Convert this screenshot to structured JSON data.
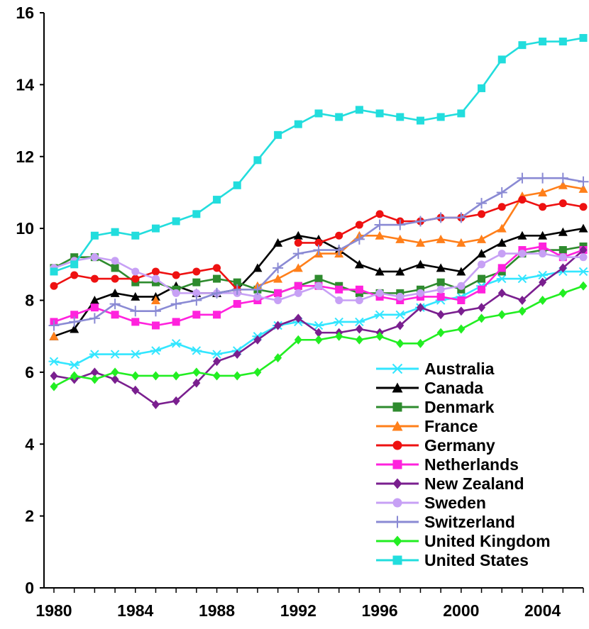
{
  "chart_data": {
    "type": "line",
    "title": "",
    "xlabel": "",
    "ylabel": "",
    "xlim": [
      1980,
      2006
    ],
    "ylim": [
      0,
      16
    ],
    "y_ticks": [
      "0",
      "2",
      "4",
      "6",
      "8",
      "10",
      "12",
      "14",
      "16"
    ],
    "x_ticks": [
      "1980",
      "1984",
      "1988",
      "1992",
      "1996",
      "2000",
      "2004"
    ],
    "x": [
      1980,
      1981,
      1982,
      1983,
      1984,
      1985,
      1986,
      1987,
      1988,
      1989,
      1990,
      1991,
      1992,
      1993,
      1994,
      1995,
      1996,
      1997,
      1998,
      1999,
      2000,
      2001,
      2002,
      2003,
      2004,
      2005,
      2006
    ],
    "grid": false,
    "legend_position": "bottom-right",
    "series": [
      {
        "name": "Australia",
        "color": "#33e6ff",
        "marker": "star",
        "values": [
          6.3,
          6.2,
          6.5,
          6.5,
          6.5,
          6.6,
          6.8,
          6.6,
          6.5,
          6.6,
          7.0,
          7.3,
          7.4,
          7.3,
          7.4,
          7.4,
          7.6,
          7.6,
          7.8,
          8.0,
          8.1,
          8.4,
          8.6,
          8.6,
          8.7,
          8.8,
          8.8
        ]
      },
      {
        "name": "Canada",
        "color": "#000000",
        "marker": "triangle",
        "values": [
          7.0,
          7.2,
          8.0,
          8.2,
          8.1,
          8.1,
          8.4,
          8.2,
          8.2,
          8.3,
          8.9,
          9.6,
          9.8,
          9.7,
          9.4,
          9.0,
          8.8,
          8.8,
          9.0,
          8.9,
          8.8,
          9.3,
          9.6,
          9.8,
          9.8,
          9.9,
          10.0
        ]
      },
      {
        "name": "Denmark",
        "color": "#2e8b2e",
        "marker": "square",
        "values": [
          8.9,
          9.2,
          9.2,
          8.9,
          8.5,
          8.5,
          8.3,
          8.5,
          8.6,
          8.5,
          8.3,
          8.2,
          8.4,
          8.6,
          8.4,
          8.2,
          8.2,
          8.2,
          8.3,
          8.5,
          8.3,
          8.6,
          8.8,
          9.3,
          9.4,
          9.4,
          9.5
        ]
      },
      {
        "name": "France",
        "color": "#ff7f1a",
        "marker": "triangle",
        "values": [
          7.0,
          null,
          null,
          null,
          null,
          8.0,
          null,
          null,
          null,
          null,
          8.4,
          8.6,
          8.9,
          9.3,
          9.3,
          9.8,
          9.8,
          9.7,
          9.6,
          9.7,
          9.6,
          9.7,
          10.0,
          10.9,
          11.0,
          11.2,
          11.1
        ]
      },
      {
        "name": "Germany",
        "color": "#ee1111",
        "marker": "circle",
        "values": [
          8.4,
          8.7,
          8.6,
          8.6,
          8.6,
          8.8,
          8.7,
          8.8,
          8.9,
          8.3,
          null,
          null,
          9.6,
          9.6,
          9.8,
          10.1,
          10.4,
          10.2,
          10.2,
          10.3,
          10.3,
          10.4,
          10.6,
          10.8,
          10.6,
          10.7,
          10.6
        ]
      },
      {
        "name": "Netherlands",
        "color": "#ff22dd",
        "marker": "square",
        "values": [
          7.4,
          7.6,
          7.8,
          7.6,
          7.4,
          7.3,
          7.4,
          7.6,
          7.6,
          7.9,
          8.0,
          8.2,
          8.4,
          8.4,
          8.3,
          8.3,
          8.1,
          8.0,
          8.1,
          8.1,
          8.0,
          8.3,
          8.9,
          9.4,
          9.5,
          9.2,
          9.4
        ]
      },
      {
        "name": "New Zealand",
        "color": "#7a1f8f",
        "marker": "diamond",
        "values": [
          5.9,
          5.8,
          6.0,
          5.8,
          5.5,
          5.1,
          5.2,
          5.7,
          6.3,
          6.5,
          6.9,
          7.3,
          7.5,
          7.1,
          7.1,
          7.2,
          7.1,
          7.3,
          7.8,
          7.6,
          7.7,
          7.8,
          8.2,
          8.0,
          8.5,
          8.9,
          9.4
        ]
      },
      {
        "name": "Sweden",
        "color": "#c7a0f5",
        "marker": "circle",
        "values": [
          8.9,
          9.1,
          9.2,
          9.1,
          8.8,
          8.6,
          8.2,
          8.2,
          8.2,
          8.2,
          8.1,
          8.0,
          8.2,
          8.4,
          8.0,
          8.0,
          8.2,
          8.1,
          8.2,
          8.3,
          8.4,
          9.0,
          9.3,
          9.3,
          9.3,
          9.2,
          9.2
        ]
      },
      {
        "name": "Switzerland",
        "color": "#8a8ad4",
        "marker": "plus",
        "values": [
          7.3,
          7.4,
          7.5,
          7.9,
          7.7,
          7.7,
          7.9,
          8.0,
          8.2,
          8.3,
          8.3,
          8.9,
          9.3,
          9.4,
          9.4,
          9.7,
          10.1,
          10.1,
          10.2,
          10.3,
          10.3,
          10.7,
          11.0,
          11.4,
          11.4,
          11.4,
          11.3
        ]
      },
      {
        "name": "United Kingdom",
        "color": "#22ee22",
        "marker": "diamond",
        "values": [
          5.6,
          5.9,
          5.8,
          6.0,
          5.9,
          5.9,
          5.9,
          6.0,
          5.9,
          5.9,
          6.0,
          6.4,
          6.9,
          6.9,
          7.0,
          6.9,
          7.0,
          6.8,
          6.8,
          7.1,
          7.2,
          7.5,
          7.6,
          7.7,
          8.0,
          8.2,
          8.4
        ]
      },
      {
        "name": "United States",
        "color": "#22dddd",
        "marker": "square",
        "values": [
          8.8,
          9.0,
          9.8,
          9.9,
          9.8,
          10.0,
          10.2,
          10.4,
          10.8,
          11.2,
          11.9,
          12.6,
          12.9,
          13.2,
          13.1,
          13.3,
          13.2,
          13.1,
          13.0,
          13.1,
          13.2,
          13.9,
          14.7,
          15.1,
          15.2,
          15.2,
          15.3
        ]
      }
    ]
  }
}
